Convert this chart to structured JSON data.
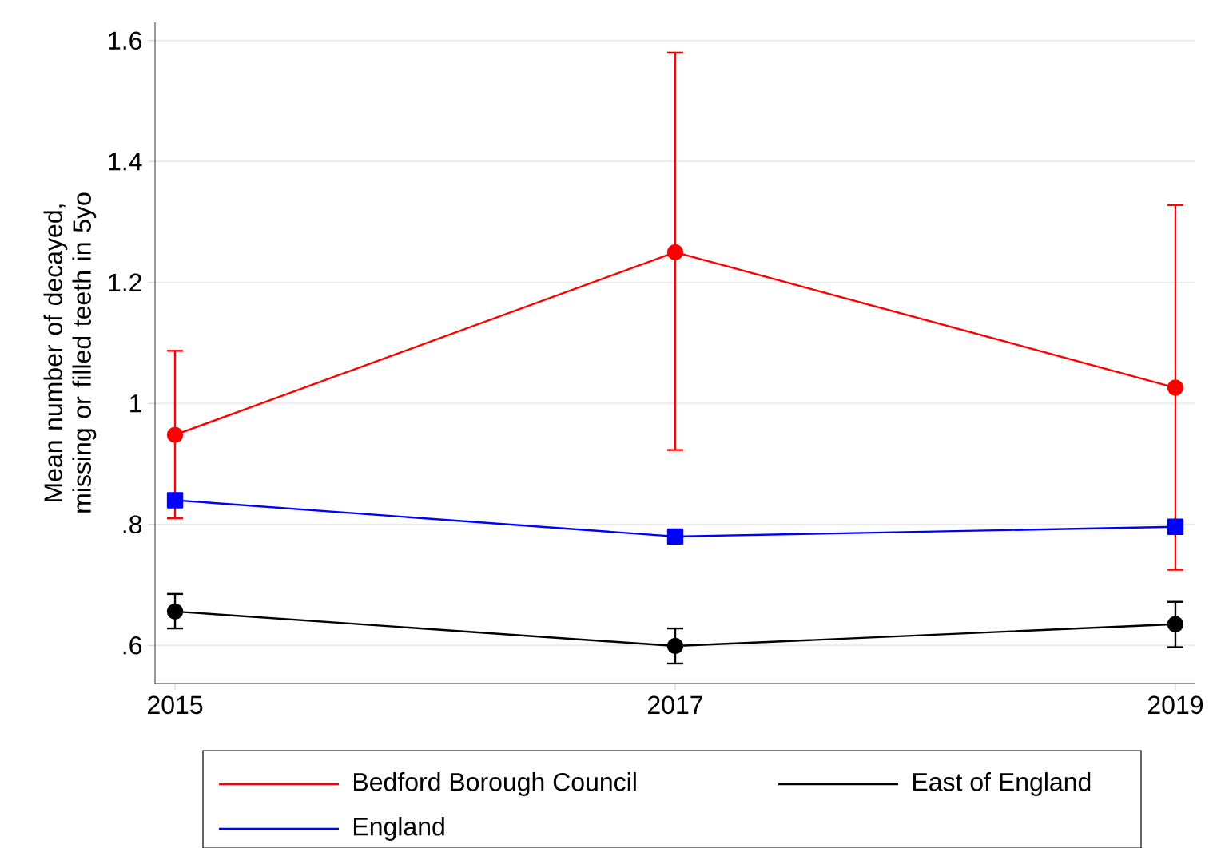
{
  "chart_data": {
    "type": "line",
    "ylabel": "Mean number of decayed, missing or filled teeth in 5yo",
    "x": [
      2015,
      2017,
      2019
    ],
    "series": [
      {
        "name": "Bedford Borough Council",
        "color": "#ff0000",
        "marker": "circle",
        "values": [
          0.948,
          1.25,
          1.026
        ],
        "errors": [
          [
            0.81,
            1.087
          ],
          [
            0.923,
            1.58
          ],
          [
            0.725,
            1.328
          ]
        ]
      },
      {
        "name": "East of England",
        "color": "#000000",
        "marker": "circle",
        "values": [
          0.656,
          0.599,
          0.635
        ],
        "errors": [
          [
            0.628,
            0.685
          ],
          [
            0.57,
            0.628
          ],
          [
            0.597,
            0.672
          ]
        ]
      },
      {
        "name": "England",
        "color": "#0000ff",
        "marker": "square",
        "values": [
          0.84,
          0.78,
          0.796
        ],
        "errors": [
          0.01,
          0.01,
          0.01
        ]
      }
    ],
    "xlim": [
      2014.92,
      2019.08
    ],
    "xticks": [
      2015,
      2017,
      2019
    ],
    "ylim": [
      0.537,
      1.63
    ],
    "yticks": [
      {
        "value": 0.6,
        "label": ".6"
      },
      {
        "value": 0.8,
        "label": ".8"
      },
      {
        "value": 1,
        "label": "1"
      },
      {
        "value": 1.2,
        "label": "1.2"
      },
      {
        "value": 1.4,
        "label": "1.4"
      },
      {
        "value": 1.6,
        "label": "1.6"
      }
    ],
    "grid": "y",
    "legend": "bottom",
    "line_style": "solid"
  }
}
